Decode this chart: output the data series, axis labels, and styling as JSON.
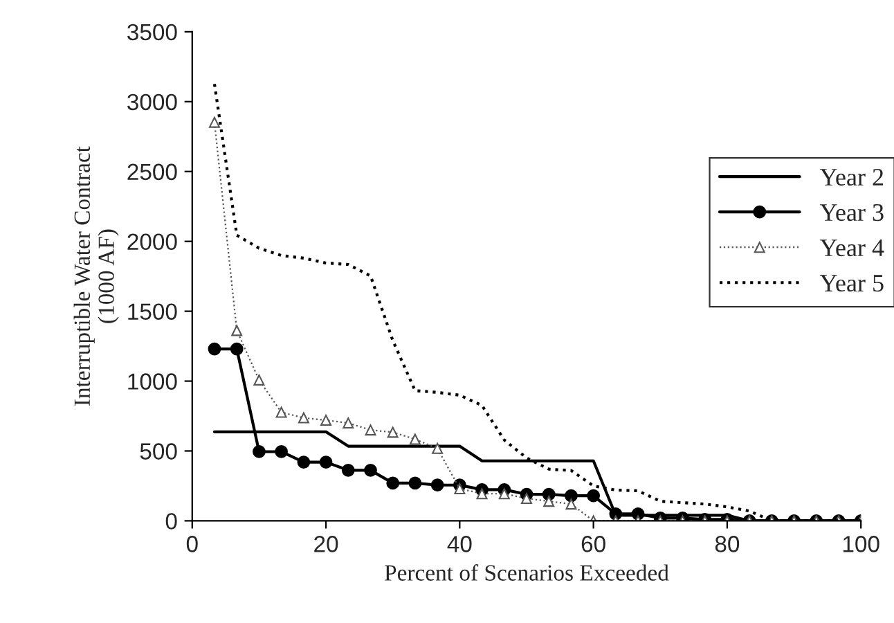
{
  "chart_data": {
    "type": "line",
    "xlabel": "Percent of Scenarios Exceeded",
    "ylabel": "Interruptible Water Contract\n(1000 AF)",
    "x": [
      3.33,
      6.67,
      10,
      13.33,
      16.67,
      20,
      23.33,
      26.67,
      30,
      33.33,
      36.67,
      40,
      43.33,
      46.67,
      50,
      53.33,
      56.67,
      60,
      63.33,
      66.67,
      70,
      73.33,
      76.67,
      80,
      83.33,
      86.67,
      90,
      93.33,
      96.67,
      100
    ],
    "series": [
      {
        "name": "Year 2",
        "color": "#000000",
        "marker": "none",
        "line_style": "solid",
        "values": [
          637,
          637,
          637,
          637,
          637,
          637,
          534,
          534,
          534,
          534,
          534,
          534,
          429,
          429,
          429,
          429,
          429,
          429,
          40,
          40,
          40,
          40,
          40,
          40,
          0,
          0,
          0,
          0,
          0,
          0
        ]
      },
      {
        "name": "Year 3",
        "color": "#000000",
        "marker": "circle",
        "line_style": "solid",
        "values": [
          1230,
          1230,
          495,
          495,
          420,
          420,
          362,
          362,
          270,
          270,
          256,
          256,
          223,
          223,
          190,
          190,
          180,
          180,
          50,
          50,
          20,
          20,
          10,
          10,
          0,
          0,
          0,
          0,
          0,
          0
        ]
      },
      {
        "name": "Year 4",
        "color": "#555555",
        "marker": "triangle",
        "line_style": "dotted",
        "values": [
          2852,
          1362,
          1008,
          777,
          737,
          720,
          700,
          650,
          634,
          584,
          518,
          230,
          194,
          194,
          160,
          140,
          120,
          0,
          0,
          0,
          0,
          0,
          0,
          0,
          0,
          0,
          0,
          0,
          0,
          0
        ]
      },
      {
        "name": "Year 5",
        "color": "#000000",
        "marker": "none",
        "line_style": "dotted",
        "values": [
          3126,
          2044,
          1951,
          1899,
          1880,
          1845,
          1835,
          1753,
          1290,
          932,
          919,
          899,
          826,
          578,
          450,
          370,
          360,
          250,
          220,
          215,
          140,
          130,
          120,
          100,
          70,
          0,
          0,
          0,
          0,
          0
        ]
      }
    ],
    "xlim": [
      0,
      100
    ],
    "xticks": [
      0,
      20,
      40,
      60,
      80,
      100
    ],
    "ylim": [
      0,
      3500
    ],
    "yticks": [
      0,
      500,
      1000,
      1500,
      2000,
      2500,
      3000,
      3500
    ],
    "grid": false,
    "legend": "right"
  }
}
